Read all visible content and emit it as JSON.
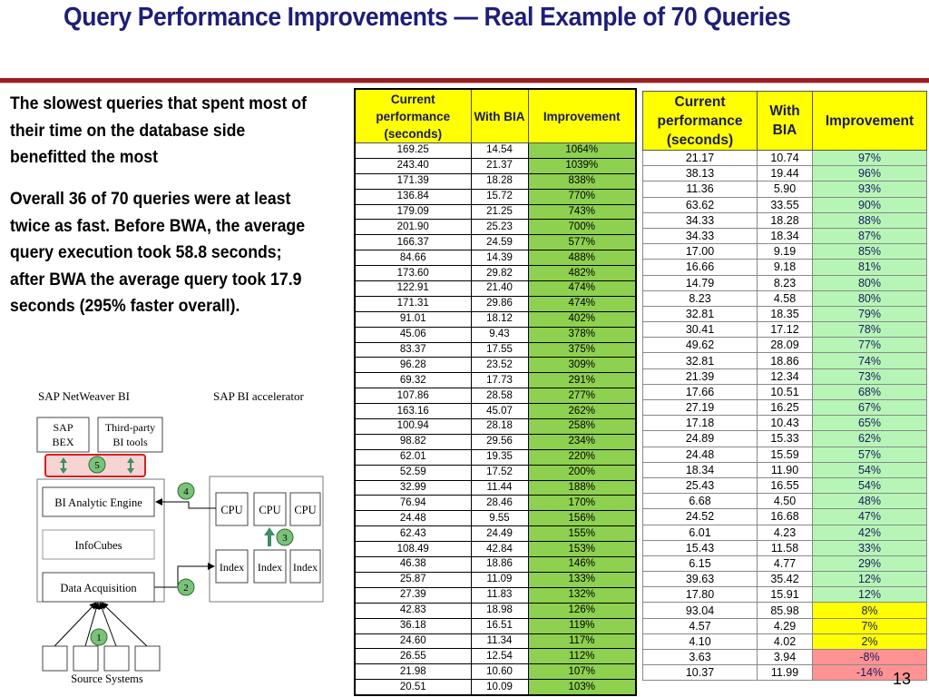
{
  "title": "Query Performance Improvements — Real Example of 70 Queries",
  "paragraphs": [
    "The slowest queries that spent most of their time on the database side benefitted the most",
    "Overall 36 of 70 queries were at least twice as fast. Before BWA, the average query execution took 58.8 seconds; after BWA the average query took 17.9 seconds (295% faster overall)."
  ],
  "diagram": {
    "left_heading": "SAP NetWeaver BI",
    "right_heading": "SAP BI accelerator",
    "sap_bex": [
      "SAP",
      "BEX"
    ],
    "third_party": [
      "Third-party",
      "BI tools"
    ],
    "engine": "BI Analytic Engine",
    "infocubes": "InfoCubes",
    "acquisition": "Data Acquisition",
    "cpu": "CPU",
    "index": "Index",
    "source_systems": "Source Systems",
    "badges": [
      "1",
      "2",
      "3",
      "4",
      "5"
    ]
  },
  "table_left": {
    "headers": [
      "Current performance (seconds)",
      "With BIA",
      "Improvement"
    ],
    "rows": [
      [
        "169.25",
        "14.54",
        "1064%"
      ],
      [
        "243.40",
        "21.37",
        "1039%"
      ],
      [
        "171.39",
        "18.28",
        "838%"
      ],
      [
        "136.84",
        "15.72",
        "770%"
      ],
      [
        "179.09",
        "21.25",
        "743%"
      ],
      [
        "201.90",
        "25.23",
        "700%"
      ],
      [
        "166.37",
        "24.59",
        "577%"
      ],
      [
        "84.66",
        "14.39",
        "488%"
      ],
      [
        "173.60",
        "29.82",
        "482%"
      ],
      [
        "122.91",
        "21.40",
        "474%"
      ],
      [
        "171.31",
        "29.86",
        "474%"
      ],
      [
        "91.01",
        "18.12",
        "402%"
      ],
      [
        "45.06",
        "9.43",
        "378%"
      ],
      [
        "83.37",
        "17.55",
        "375%"
      ],
      [
        "96.28",
        "23.52",
        "309%"
      ],
      [
        "69.32",
        "17.73",
        "291%"
      ],
      [
        "107.86",
        "28.58",
        "277%"
      ],
      [
        "163.16",
        "45.07",
        "262%"
      ],
      [
        "100.94",
        "28.18",
        "258%"
      ],
      [
        "98.82",
        "29.56",
        "234%"
      ],
      [
        "62.01",
        "19.35",
        "220%"
      ],
      [
        "52.59",
        "17.52",
        "200%"
      ],
      [
        "32.99",
        "11.44",
        "188%"
      ],
      [
        "76.94",
        "28.46",
        "170%"
      ],
      [
        "24.48",
        "9.55",
        "156%"
      ],
      [
        "62.43",
        "24.49",
        "155%"
      ],
      [
        "108.49",
        "42.84",
        "153%"
      ],
      [
        "46.38",
        "18.86",
        "146%"
      ],
      [
        "25.87",
        "11.09",
        "133%"
      ],
      [
        "27.39",
        "11.83",
        "132%"
      ],
      [
        "42.83",
        "18.98",
        "126%"
      ],
      [
        "36.18",
        "16.51",
        "119%"
      ],
      [
        "24.60",
        "11.34",
        "117%"
      ],
      [
        "26.55",
        "12.54",
        "112%"
      ],
      [
        "21.98",
        "10.60",
        "107%"
      ],
      [
        "20.51",
        "10.09",
        "103%"
      ]
    ],
    "improvement_color": "#8ed04f"
  },
  "table_right": {
    "headers": [
      "Current performance (seconds)",
      "With BIA",
      "Improvement"
    ],
    "rows": [
      [
        "21.17",
        "10.74",
        "97%",
        "green"
      ],
      [
        "38.13",
        "19.44",
        "96%",
        "green"
      ],
      [
        "11.36",
        "5.90",
        "93%",
        "green"
      ],
      [
        "63.62",
        "33.55",
        "90%",
        "green"
      ],
      [
        "34.33",
        "18.28",
        "88%",
        "green"
      ],
      [
        "34.33",
        "18.34",
        "87%",
        "green"
      ],
      [
        "17.00",
        "9.19",
        "85%",
        "green"
      ],
      [
        "16.66",
        "9.18",
        "81%",
        "green"
      ],
      [
        "14.79",
        "8.23",
        "80%",
        "green"
      ],
      [
        "8.23",
        "4.58",
        "80%",
        "green"
      ],
      [
        "32.81",
        "18.35",
        "79%",
        "green"
      ],
      [
        "30.41",
        "17.12",
        "78%",
        "green"
      ],
      [
        "49.62",
        "28.09",
        "77%",
        "green"
      ],
      [
        "32.81",
        "18.86",
        "74%",
        "green"
      ],
      [
        "21.39",
        "12.34",
        "73%",
        "green"
      ],
      [
        "17.66",
        "10.51",
        "68%",
        "green"
      ],
      [
        "27.19",
        "16.25",
        "67%",
        "green"
      ],
      [
        "17.18",
        "10.43",
        "65%",
        "green"
      ],
      [
        "24.89",
        "15.33",
        "62%",
        "green"
      ],
      [
        "24.48",
        "15.59",
        "57%",
        "green"
      ],
      [
        "18.34",
        "11.90",
        "54%",
        "green"
      ],
      [
        "25.43",
        "16.55",
        "54%",
        "green"
      ],
      [
        "6.68",
        "4.50",
        "48%",
        "green"
      ],
      [
        "24.52",
        "16.68",
        "47%",
        "green"
      ],
      [
        "6.01",
        "4.23",
        "42%",
        "green"
      ],
      [
        "15.43",
        "11.58",
        "33%",
        "green"
      ],
      [
        "6.15",
        "4.77",
        "29%",
        "green"
      ],
      [
        "39.63",
        "35.42",
        "12%",
        "green"
      ],
      [
        "17.80",
        "15.91",
        "12%",
        "green"
      ],
      [
        "93.04",
        "85.98",
        "8%",
        "yellow"
      ],
      [
        "4.57",
        "4.29",
        "7%",
        "yellow"
      ],
      [
        "4.10",
        "4.02",
        "2%",
        "yellow"
      ],
      [
        "3.63",
        "3.94",
        "-8%",
        "red"
      ],
      [
        "10.37",
        "11.99",
        "-14%",
        "red"
      ]
    ],
    "colors": {
      "green": "#b6f5b6",
      "yellow": "#ffff00",
      "red": "#ff9393"
    }
  },
  "page_number": "13",
  "colors": {
    "title": "#1e1e78",
    "rule": "#9a1f1f",
    "header_fill": "#ffff00",
    "badge": "#7ac27a"
  }
}
